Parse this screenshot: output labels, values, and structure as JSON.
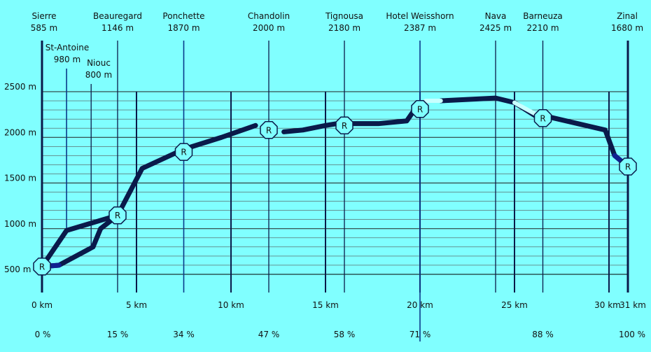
{
  "chart_data": {
    "type": "line",
    "title": "",
    "xlabel": "",
    "ylabel": "",
    "x_unit": "km",
    "y_unit": "m",
    "xlim": [
      0,
      31
    ],
    "ylim": [
      500,
      2500
    ],
    "grid": true,
    "background_color": "#80ffff",
    "line_color": "#0a1a4a",
    "light_segment_color": "#c8ffff",
    "y_ticks": [
      {
        "value": 500,
        "label": "500 m"
      },
      {
        "value": 1000,
        "label": "1000 m"
      },
      {
        "value": 1500,
        "label": "1500 m"
      },
      {
        "value": 2000,
        "label": "2000 m"
      },
      {
        "value": 2500,
        "label": "2500 m"
      }
    ],
    "x_ticks": [
      {
        "value": 0,
        "label": "0 km"
      },
      {
        "value": 5,
        "label": "5 km"
      },
      {
        "value": 10,
        "label": "10 km"
      },
      {
        "value": 15,
        "label": "15 km"
      },
      {
        "value": 20,
        "label": "20 km"
      },
      {
        "value": 25,
        "label": "25 km"
      },
      {
        "value": 30,
        "label": "30 km"
      },
      {
        "value": 31,
        "label": "31 km"
      }
    ],
    "percent_labels": [
      {
        "km": 0,
        "label": "0 %"
      },
      {
        "km": 4,
        "label": "15 %"
      },
      {
        "km": 7.5,
        "label": "34 %"
      },
      {
        "km": 12,
        "label": "47 %"
      },
      {
        "km": 16,
        "label": "58 %"
      },
      {
        "km": 20,
        "label": "71 %"
      },
      {
        "km": 26.5,
        "label": "88 %"
      },
      {
        "km": 31,
        "label": "100 %"
      }
    ],
    "places": [
      {
        "name": "Sierre",
        "elev_label": "585 m",
        "km": 0,
        "marker": true,
        "tall": true
      },
      {
        "name": "St-Antoine",
        "elev_label": "980 m",
        "km": 1.3,
        "marker": false,
        "tall": false
      },
      {
        "name": "Niouc",
        "elev_label": "800 m",
        "km": 2.6,
        "marker": false,
        "tall": false
      },
      {
        "name": "Beauregard",
        "elev_label": "1146 m",
        "km": 4,
        "marker": true,
        "tall": true
      },
      {
        "name": "Ponchette",
        "elev_label": "1870 m",
        "km": 7.5,
        "marker": true,
        "tall": true
      },
      {
        "name": "Chandolin",
        "elev_label": "2000 m",
        "km": 12,
        "marker": true,
        "tall": true
      },
      {
        "name": "Tignousa",
        "elev_label": "2180 m",
        "km": 16,
        "marker": true,
        "tall": true
      },
      {
        "name": "Hotel Weisshorn",
        "elev_label": "2387 m",
        "km": 20,
        "marker": true,
        "tall": true
      },
      {
        "name": "Nava",
        "elev_label": "2425 m",
        "km": 24,
        "marker": false,
        "tall": true
      },
      {
        "name": "Barneuza",
        "elev_label": "2210 m",
        "km": 26.5,
        "marker": true,
        "tall": true
      },
      {
        "name": "Zinal",
        "elev_label": "1680 m",
        "km": 31,
        "marker": true,
        "tall": true
      }
    ],
    "marker_label": "R",
    "series": [
      {
        "values": [
          [
            0,
            585
          ],
          [
            0.9,
            600
          ],
          [
            2.7,
            800
          ],
          [
            3.1,
            1000
          ],
          [
            4,
            1146
          ]
        ]
      },
      {
        "values": [
          [
            0,
            585
          ],
          [
            1.3,
            980
          ],
          [
            4,
            1146
          ],
          [
            5.3,
            1660
          ],
          [
            7.5,
            1870
          ],
          [
            9.5,
            2000
          ],
          [
            11.3,
            2130
          ]
        ]
      },
      {
        "values": [
          [
            12.8,
            2060
          ],
          [
            13.8,
            2080
          ],
          [
            15,
            2130
          ],
          [
            15.6,
            2150
          ],
          [
            17.8,
            2150
          ],
          [
            19.3,
            2180
          ],
          [
            19.7,
            2300
          ]
        ]
      },
      {
        "values": [
          [
            21.1,
            2400
          ],
          [
            24,
            2430
          ],
          [
            25,
            2380
          ],
          [
            26.3,
            2210
          ],
          [
            26.9,
            2220
          ],
          [
            29.8,
            2080
          ],
          [
            30.3,
            1800
          ],
          [
            31,
            1680
          ]
        ]
      }
    ],
    "light_segments": [
      {
        "values": [
          [
            20.3,
            2400
          ],
          [
            21.1,
            2400
          ]
        ]
      },
      {
        "values": [
          [
            25,
            2380
          ],
          [
            26.5,
            2210
          ]
        ]
      }
    ],
    "dark_blue_segments": [
      {
        "values": [
          [
            0,
            585
          ],
          [
            0.9,
            600
          ]
        ]
      },
      {
        "values": [
          [
            30.3,
            1800
          ],
          [
            31,
            1680
          ]
        ]
      }
    ]
  }
}
